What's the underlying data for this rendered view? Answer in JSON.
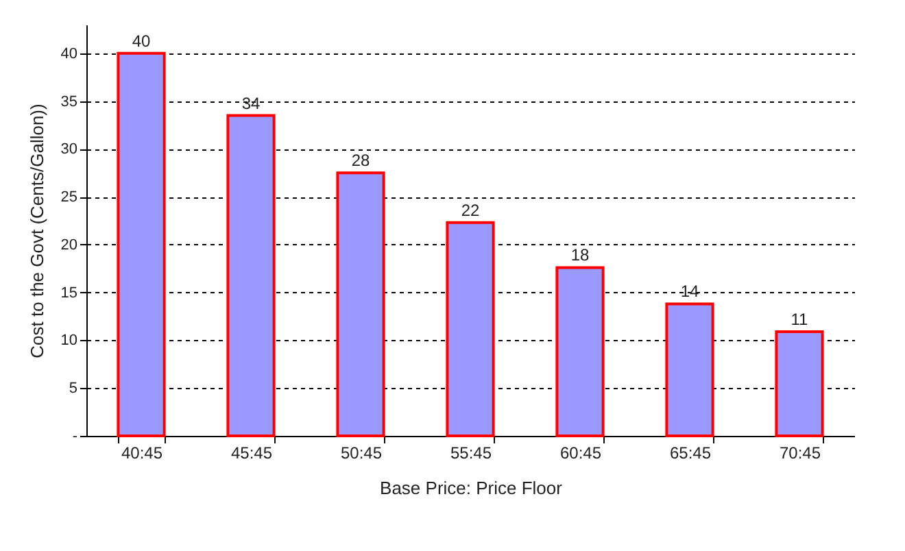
{
  "chart_data": {
    "type": "bar",
    "xlabel": "Base Price: Price Floor",
    "ylabel": "Cost to the Govt (Cents/Gallon))",
    "categories": [
      "40:45",
      "45:45",
      "50:45",
      "55:45",
      "60:45",
      "65:45",
      "70:45"
    ],
    "values": [
      40,
      33.5,
      27.5,
      22.3,
      17.6,
      13.8,
      10.9
    ],
    "value_labels": [
      "40",
      "34",
      "28",
      "22",
      "18",
      "14",
      "11"
    ],
    "color": "#9999ff",
    "ylim": [
      0,
      43
    ],
    "yticks": [
      {
        "value": 0,
        "label": "-"
      },
      5,
      10,
      15,
      20,
      25,
      30,
      35,
      40
    ],
    "grid": "y"
  }
}
